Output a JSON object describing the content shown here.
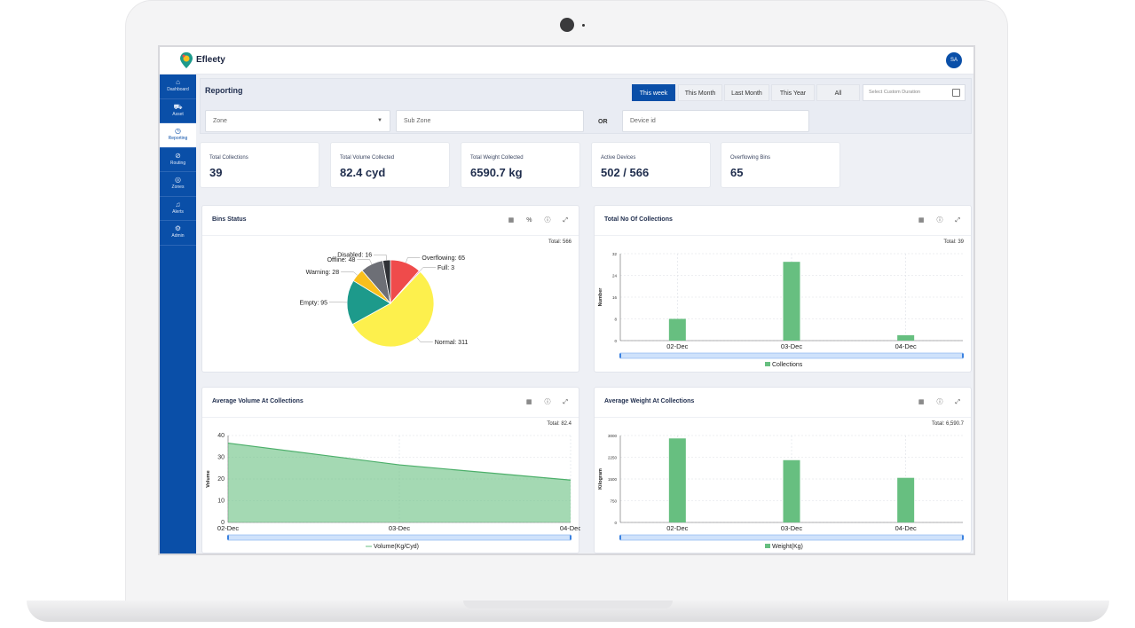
{
  "app": {
    "brand": "Efleety",
    "avatar_initials": "SA"
  },
  "sidebar": {
    "items": [
      {
        "label": "Dashboard",
        "icon": "home-icon",
        "glyph": "⌂",
        "active": false
      },
      {
        "label": "Asset",
        "icon": "truck-icon",
        "glyph": "⛟",
        "active": false
      },
      {
        "label": "Reporting",
        "icon": "clock-icon",
        "glyph": "◷",
        "active": true
      },
      {
        "label": "Routing",
        "icon": "compass-icon",
        "glyph": "⊘",
        "active": false
      },
      {
        "label": "Zones",
        "icon": "target-icon",
        "glyph": "◎",
        "active": false
      },
      {
        "label": "Alerts",
        "icon": "bell-icon",
        "glyph": "♫",
        "active": false
      },
      {
        "label": "Admin",
        "icon": "gear-icon",
        "glyph": "⚙",
        "active": false
      }
    ]
  },
  "reporting": {
    "title": "Reporting",
    "ranges": [
      "This week",
      "This Month",
      "Last Month",
      "This Year",
      "All"
    ],
    "active_range": "This week",
    "custom_duration_placeholder": "Select Custom Duration",
    "zone_placeholder": "Zone",
    "subzone_placeholder": "Sub Zone",
    "or_label": "OR",
    "device_placeholder": "Device id"
  },
  "stats": [
    {
      "label": "Total Collections",
      "value": "39"
    },
    {
      "label": "Total Volume Collected",
      "value": "82.4 cyd"
    },
    {
      "label": "Total Weight Collected",
      "value": "6590.7 kg"
    },
    {
      "label": "Active Devices",
      "value": "502 / 566"
    },
    {
      "label": "Overflowing Bins",
      "value": "65"
    }
  ],
  "cards": {
    "bins": {
      "title": "Bins Status",
      "total": "Total: 566",
      "tool_percent": "%"
    },
    "collections": {
      "title": "Total No Of Collections",
      "total": "Total: 39"
    },
    "volume": {
      "title": "Average Volume At Collections",
      "total": "Total: 82.4"
    },
    "weight": {
      "title": "Average Weight At Collections",
      "total": "Total: 6,590.7"
    }
  },
  "chart_data": [
    {
      "type": "pie",
      "title": "Bins Status",
      "slices": [
        {
          "name": "Overflowing",
          "value": 65,
          "color": "#ef4b4b"
        },
        {
          "name": "Full",
          "value": 3,
          "color": "#f27fc0"
        },
        {
          "name": "Normal",
          "value": 311,
          "color": "#fdf04d"
        },
        {
          "name": "Empty",
          "value": 95,
          "color": "#1d9a8b"
        },
        {
          "name": "Warning",
          "value": 28,
          "color": "#f9bf1c"
        },
        {
          "name": "Offline",
          "value": 48,
          "color": "#6d6f76"
        },
        {
          "name": "Disabled",
          "value": 16,
          "color": "#2f3136"
        }
      ]
    },
    {
      "type": "bar",
      "title": "Total No Of Collections",
      "categories": [
        "02-Dec",
        "03-Dec",
        "04-Dec"
      ],
      "series": [
        {
          "name": "Collections",
          "values": [
            8,
            29,
            2
          ]
        }
      ],
      "ylabel": "Number",
      "ylim": [
        0,
        32
      ],
      "yticks": [
        0,
        8,
        16,
        24,
        32
      ],
      "color": "#67bf80"
    },
    {
      "type": "area",
      "title": "Average Volume At Collections",
      "categories": [
        "02-Dec",
        "03-Dec",
        "04-Dec"
      ],
      "series": [
        {
          "name": "Volume(Kg/Cyd)",
          "values": [
            36.5,
            26.5,
            19.5
          ]
        }
      ],
      "ylabel": "Volume",
      "ylim": [
        0,
        40
      ],
      "yticks": [
        0,
        10,
        20,
        30,
        40
      ],
      "color": "#67bf80"
    },
    {
      "type": "bar",
      "title": "Average Weight At Collections",
      "categories": [
        "02-Dec",
        "03-Dec",
        "04-Dec"
      ],
      "series": [
        {
          "name": "Weight(Kg)",
          "values": [
            2900,
            2150,
            1540
          ]
        }
      ],
      "ylabel": "Kilogram",
      "ylim": [
        0,
        3000
      ],
      "yticks": [
        0,
        750,
        1500,
        2250,
        3000
      ],
      "color": "#67bf80"
    }
  ]
}
